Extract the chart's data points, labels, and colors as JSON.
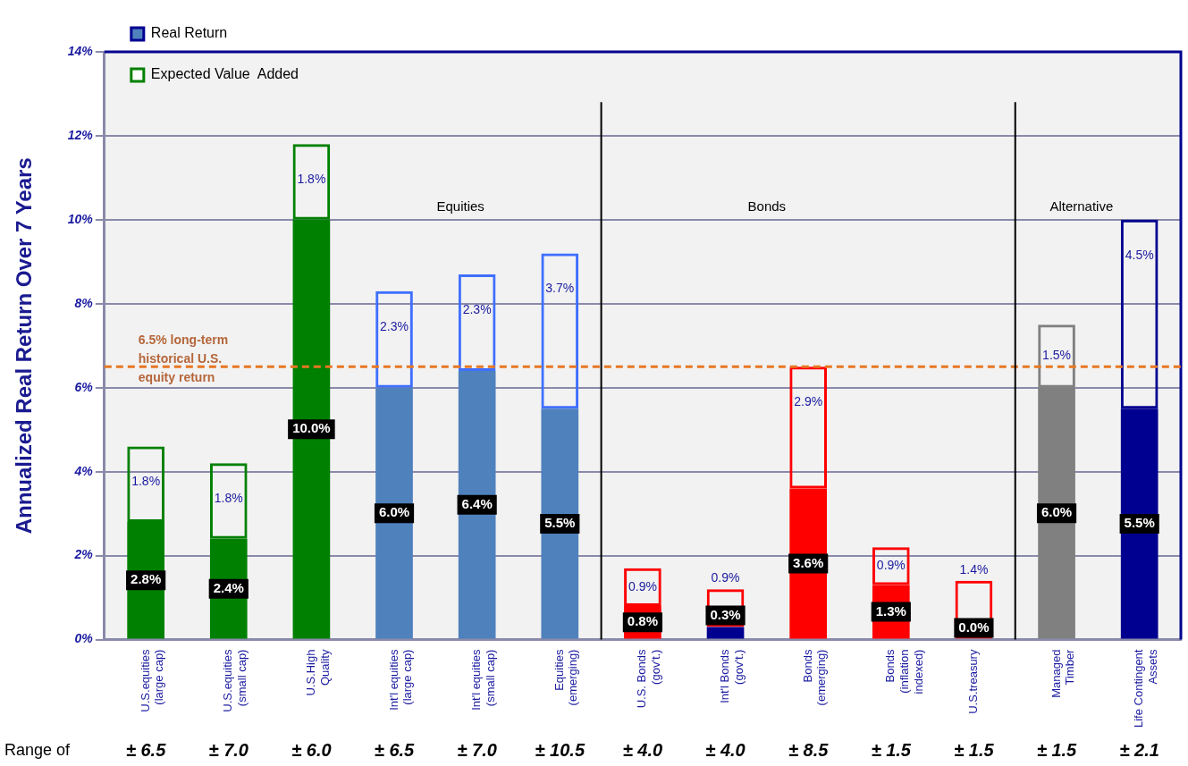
{
  "chart_data": {
    "type": "bar",
    "stacked": true,
    "ylabel": "Annualized Real Return Over 7 Years",
    "categories": [
      "U.S.equities\n(large cap)",
      "U.S.equities\n(small cap)",
      "U.S.High\nQuality",
      "Int'l equities\n(large cap)",
      "Int'l equities\n(small cap)",
      "Equities\n(emerging)",
      "U.S. Bonds\n(gov't.)",
      "Int'l Bonds\n(gov't.)",
      "Bonds\n(emerging)",
      "Bonds\n(inflation\nindexed)",
      "U.S.treasury",
      "Managed\nTimber",
      "Life Contingent\nAssets"
    ],
    "series": [
      {
        "name": "Real Return",
        "color": "#4f81bd",
        "colors": [
          "#008000",
          "#008000",
          "#008000",
          "#4f81bd",
          "#4f81bd",
          "#4f81bd",
          "#ff0000",
          "#000090",
          "#ff0000",
          "#ff0000",
          "#ff0000",
          "#808080",
          "#000090"
        ],
        "values": [
          2.8,
          2.4,
          10.0,
          6.0,
          6.4,
          5.5,
          0.8,
          0.3,
          3.6,
          1.3,
          0.0,
          6.0,
          5.5
        ],
        "value_labels": [
          "2.8%",
          "2.4%",
          "10.0%",
          "6.0%",
          "6.4%",
          "5.5%",
          "0.8%",
          "0.3%",
          "3.6%",
          "1.3%",
          "0.0%",
          "6.0%",
          "5.5%"
        ]
      },
      {
        "name": "Expected Value  Added",
        "color": "#008000",
        "colors": [
          "#008000",
          "#008000",
          "#008000",
          "#3f6fff",
          "#3f6fff",
          "#3f6fff",
          "#ff0000",
          "#ff0000",
          "#ff0000",
          "#ff0000",
          "#ff0000",
          "#808080",
          "#000090"
        ],
        "values": [
          1.8,
          1.8,
          1.8,
          2.3,
          2.3,
          3.7,
          0.9,
          0.9,
          2.9,
          0.9,
          1.4,
          1.5,
          4.5
        ],
        "value_labels": [
          "1.8%",
          "1.8%",
          "1.8%",
          "2.3%",
          "2.3%",
          "3.7%",
          "0.9%",
          "0.9%",
          "2.9%",
          "0.9%",
          "1.4%",
          "1.5%",
          "4.5%"
        ]
      }
    ],
    "ylim": [
      0,
      14
    ],
    "yticks": [
      {
        "value": 0,
        "label": "0%"
      },
      {
        "value": 2,
        "label": "2%"
      },
      {
        "value": 4,
        "label": "4%"
      },
      {
        "value": 6,
        "label": "6%"
      },
      {
        "value": 8,
        "label": "8%"
      },
      {
        "value": 10,
        "label": "10%"
      },
      {
        "value": 12,
        "label": "12%"
      },
      {
        "value": 14,
        "label": "14%"
      }
    ],
    "grid": "y",
    "legend": "top left",
    "ref_lines": [
      {
        "axis": "y",
        "value": 6.5,
        "label": "6.5% long-term\nhistorical U.S.\nequity return",
        "color": "#e87722",
        "line_style": "dashed"
      }
    ],
    "annotations": [
      "Equities",
      "Bonds",
      "Alternative",
      "Range of",
      "± 6.5",
      "± 7.0",
      "± 6.0",
      "± 6.5",
      "± 7.0",
      "± 10.5",
      "± 4.0",
      "± 4.0",
      "± 8.5",
      "± 1.5",
      "± 1.5",
      "± 1.5",
      "± 2.1"
    ]
  }
}
